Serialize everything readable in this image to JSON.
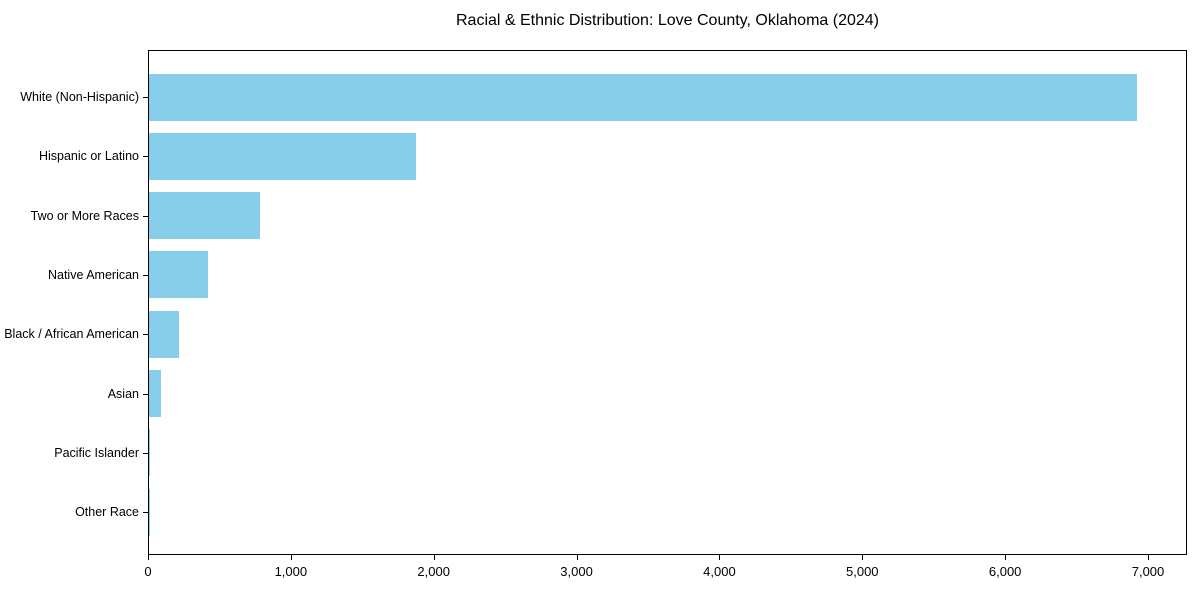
{
  "chart_data": {
    "type": "bar",
    "orientation": "horizontal",
    "title": "Racial & Ethnic Distribution: Love County, Oklahoma (2024)",
    "categories": [
      "White (Non-Hispanic)",
      "Hispanic or Latino",
      "Two or More Races",
      "Native American",
      "Black / African American",
      "Asian",
      "Pacific Islander",
      "Other Race"
    ],
    "values": [
      6915,
      1870,
      775,
      410,
      210,
      87,
      5,
      3
    ],
    "xlabel": "",
    "ylabel": "",
    "xlim": [
      0,
      7273
    ],
    "x_ticks": [
      0,
      1000,
      2000,
      3000,
      4000,
      5000,
      6000,
      7000
    ],
    "x_tick_labels": [
      "0",
      "1,000",
      "2,000",
      "3,000",
      "4,000",
      "5,000",
      "6,000",
      "7,000"
    ],
    "bar_color": "#87CEEB",
    "grid": false,
    "legend": "none",
    "frame": "full-box"
  }
}
